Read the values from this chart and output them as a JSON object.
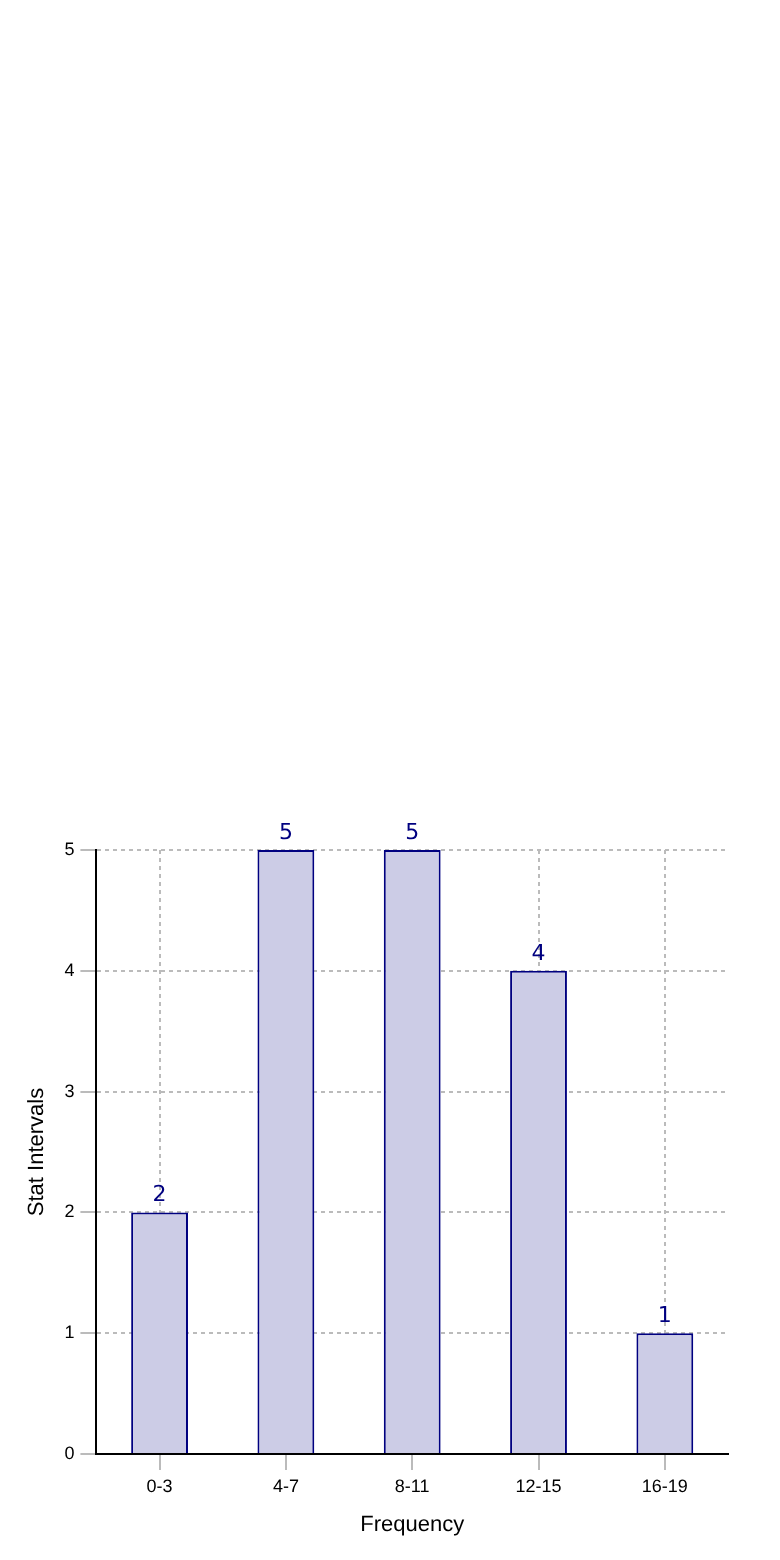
{
  "chart_data": {
    "type": "bar",
    "xlabel": "Frequency",
    "ylabel": "Stat Intervals",
    "categories": [
      "0-3",
      "4-7",
      "8-11",
      "12-15",
      "16-19"
    ],
    "values": [
      2,
      5,
      5,
      4,
      1
    ],
    "color": "#ccccE6",
    "ylim": [
      0,
      5
    ],
    "yticks": [
      0,
      1,
      2,
      3,
      4,
      5
    ],
    "grid": true,
    "data_labels": true,
    "legend": false
  }
}
